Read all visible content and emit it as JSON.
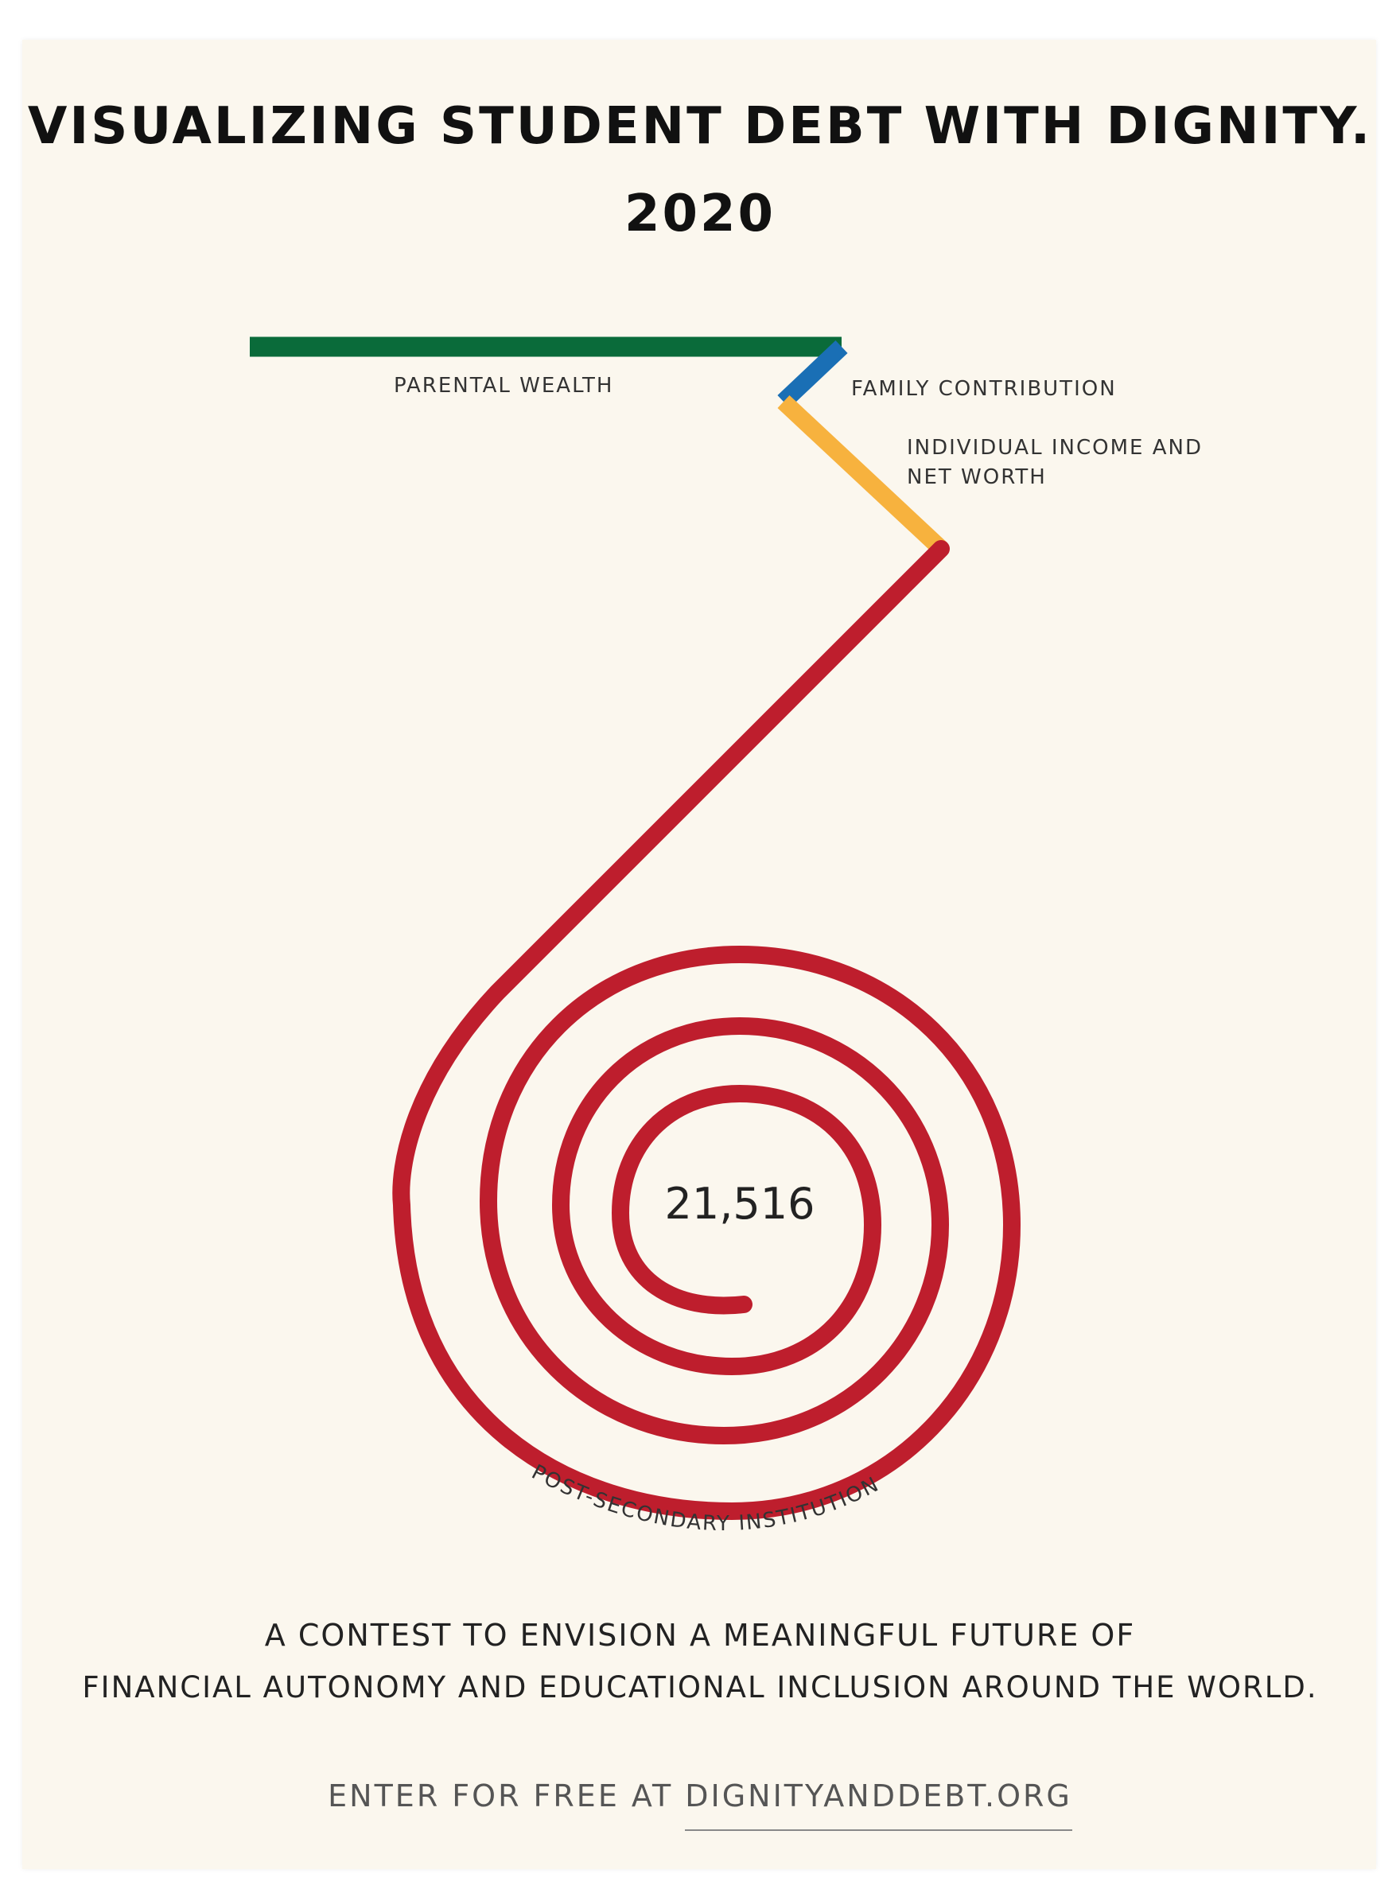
{
  "title": {
    "line1": "VISUALIZING STUDENT DEBT WITH DIGNITY.",
    "line2": "2020"
  },
  "segments": [
    {
      "label": "PARENTAL WEALTH",
      "color": "#0a6b3a"
    },
    {
      "label": "FAMILY CONTRIBUTION",
      "color": "#1a6fb5"
    },
    {
      "label_lines": [
        "INDIVIDUAL INCOME AND",
        "NET WORTH"
      ],
      "color": "#f7b23e"
    },
    {
      "label": "POST-SECONDARY INSTITUTION",
      "color": "#be1e2d"
    }
  ],
  "center_value": "21,516",
  "tagline": {
    "line1": "A CONTEST TO ENVISION A MEANINGFUL FUTURE OF",
    "line2": "FINANCIAL AUTONOMY AND EDUCATIONAL INCLUSION AROUND THE WORLD."
  },
  "cta": {
    "prefix": "ENTER FOR FREE AT ",
    "link": "DIGNITYANDDEBT.ORG"
  }
}
